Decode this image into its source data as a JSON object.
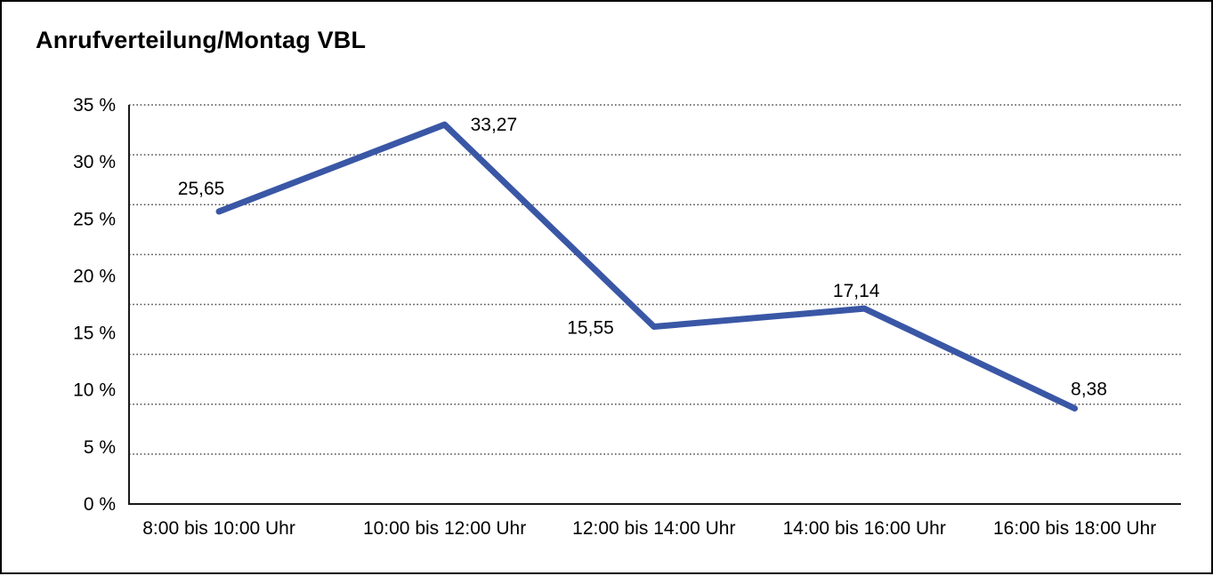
{
  "title": "Anrufverteilung/Montag VBL",
  "chart_data": {
    "type": "line",
    "title": "Anrufverteilung/Montag VBL",
    "categories": [
      "8:00 bis 10:00 Uhr",
      "10:00 bis 12:00 Uhr",
      "12:00 bis 14:00 Uhr",
      "14:00 bis 16:00 Uhr",
      "16:00 bis 18:00 Uhr"
    ],
    "values": [
      25.65,
      33.27,
      15.55,
      17.14,
      8.38
    ],
    "point_labels": [
      "25,65",
      "33,27",
      "15,55",
      "17,14",
      "8,38"
    ],
    "xlabel": "",
    "ylabel": "",
    "ylim": [
      0,
      35
    ],
    "ytick_step": 5,
    "ytick_labels": [
      "0 %",
      "5 %",
      "10 %",
      "15 %",
      "20 %",
      "25 %",
      "30 %",
      "35 %"
    ],
    "grid": "horizontal-dotted",
    "gridline_intervals": 8,
    "legend": "none",
    "line_color": "#3A57A6",
    "axis_color": "#1a1a1a",
    "grid_color": "#4d4d4d"
  }
}
